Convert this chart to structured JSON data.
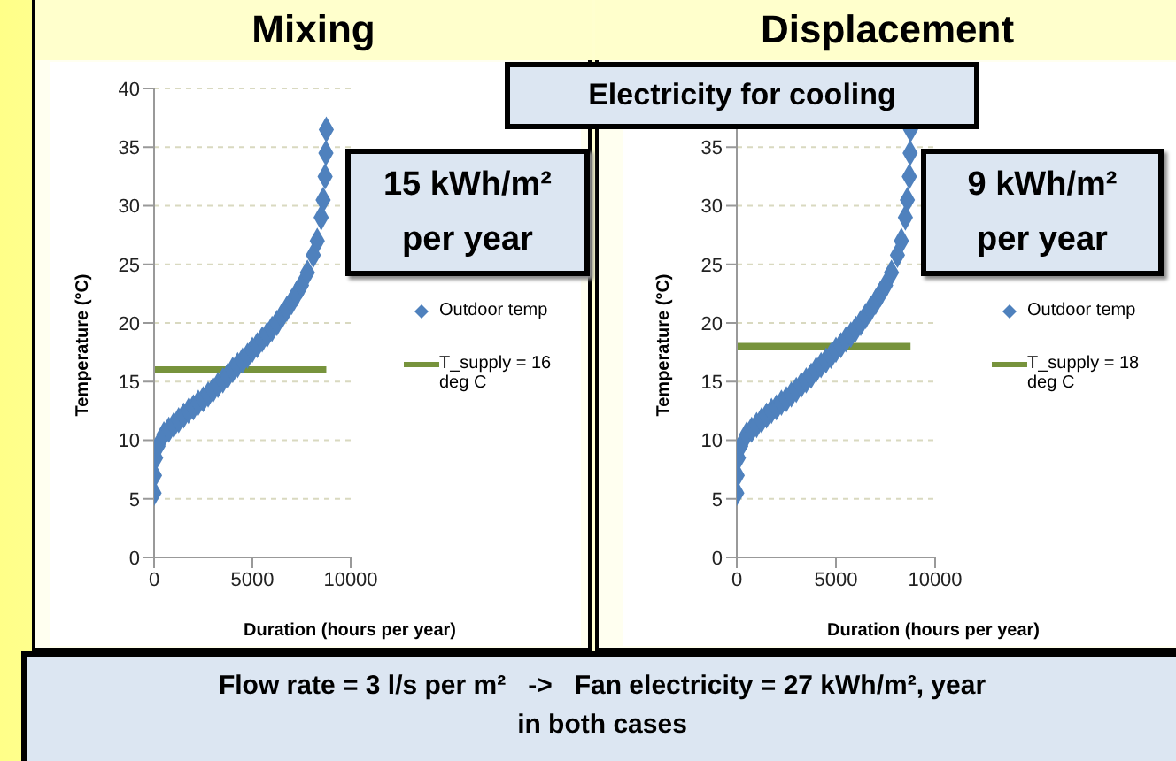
{
  "chart_data": [
    {
      "type": "scatter",
      "title": "Mixing",
      "xlabel": "Duration (hours per year)",
      "ylabel": "Temperature (°C)",
      "annotations": [
        "Electricity for cooling",
        "15 kWh/m² per year",
        "Flow rate = 3 l/s per m²   ->   Fan electricity = 27 kWh/m², year\nin both cases"
      ],
      "xlim": [
        0,
        10000
      ],
      "ylim": [
        0,
        40
      ],
      "xticks": [
        0,
        5000,
        10000
      ],
      "yticks": [
        0,
        5,
        10,
        15,
        20,
        25,
        30,
        35,
        40
      ],
      "grid": "y",
      "legend": "right",
      "series": [
        {
          "name": "Outdoor temp",
          "color": "#4f81bd",
          "marker": "diamond",
          "x": [
            0,
            20,
            80,
            200,
            500,
            750,
            1000,
            1250,
            1500,
            1750,
            2000,
            2250,
            2500,
            2750,
            3000,
            3250,
            3500,
            3750,
            4000,
            4250,
            4500,
            4750,
            5000,
            5250,
            5500,
            5750,
            6000,
            6250,
            6500,
            6750,
            7000,
            7250,
            7500,
            7800,
            8100,
            8300,
            8500,
            8600,
            8700,
            8740,
            8760
          ],
          "values": [
            5.5,
            7,
            8.5,
            9.5,
            10.5,
            10.9,
            11.3,
            11.7,
            12.1,
            12.5,
            12.8,
            13.2,
            13.5,
            13.9,
            14.3,
            14.7,
            15.1,
            15.5,
            16,
            16.4,
            16.8,
            17.2,
            17.7,
            18.1,
            18.6,
            19,
            19.5,
            20,
            20.6,
            21.2,
            21.8,
            22.5,
            23.2,
            24.3,
            25.8,
            27,
            29,
            30.5,
            32.5,
            34.5,
            36.5
          ]
        },
        {
          "type": "line",
          "name": "T_supply = 16 deg C",
          "color": "#77933c",
          "x": [
            0,
            8760
          ],
          "values": [
            16,
            16
          ]
        }
      ]
    },
    {
      "type": "scatter",
      "title": "Displacement",
      "xlabel": "Duration (hours per year)",
      "ylabel": "Temperature (°C)",
      "annotations": [
        "9 kWh/m² per year"
      ],
      "xlim": [
        0,
        10000
      ],
      "ylim": [
        0,
        40
      ],
      "xticks": [
        0,
        5000,
        10000
      ],
      "yticks": [
        0,
        5,
        10,
        15,
        20,
        25,
        30,
        35
      ],
      "grid": "y",
      "legend": "right",
      "series": [
        {
          "name": "Outdoor temp",
          "color": "#4f81bd",
          "marker": "diamond",
          "x": [
            0,
            20,
            80,
            200,
            500,
            750,
            1000,
            1250,
            1500,
            1750,
            2000,
            2250,
            2500,
            2750,
            3000,
            3250,
            3500,
            3750,
            4000,
            4250,
            4500,
            4750,
            5000,
            5250,
            5500,
            5750,
            6000,
            6250,
            6500,
            6750,
            7000,
            7250,
            7500,
            7800,
            8100,
            8300,
            8500,
            8600,
            8700,
            8740,
            8760
          ],
          "values": [
            5.5,
            7,
            8.5,
            9.5,
            10.5,
            10.9,
            11.3,
            11.7,
            12.1,
            12.5,
            12.8,
            13.2,
            13.5,
            13.9,
            14.3,
            14.7,
            15.1,
            15.5,
            16,
            16.4,
            16.8,
            17.2,
            17.7,
            18.1,
            18.6,
            19,
            19.5,
            20,
            20.6,
            21.2,
            21.8,
            22.5,
            23.2,
            24.3,
            25.8,
            27,
            29,
            30.5,
            32.5,
            34.5,
            36.5
          ]
        },
        {
          "type": "line",
          "name": "T_supply = 18 deg C",
          "color": "#77933c",
          "x": [
            0,
            8760
          ],
          "values": [
            18,
            18
          ]
        }
      ]
    }
  ]
}
